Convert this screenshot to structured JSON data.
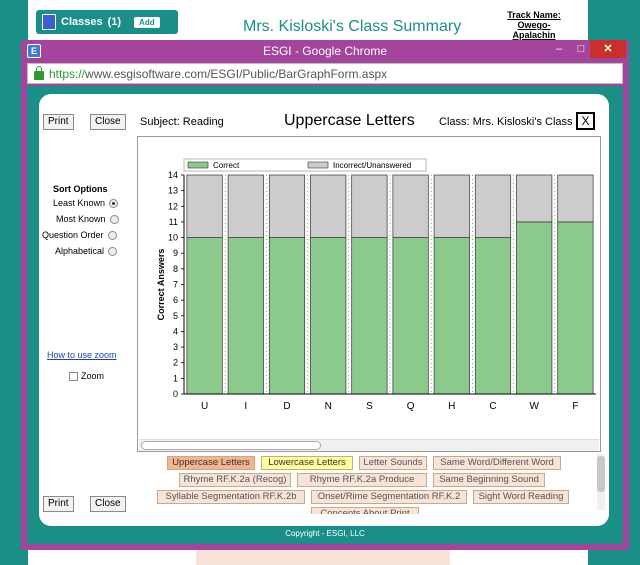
{
  "background": {
    "classes_label": "Classes",
    "classes_count": "(1)",
    "add_label": "Add",
    "page_title": "Mrs. Kisloski's Class Summary",
    "track_line1": "Track Name: Owego-",
    "track_line2": "Apalachin"
  },
  "window": {
    "title": "ESGI - Google Chrome",
    "app_icon": "ESGI",
    "minimize": "–",
    "maximize": "□",
    "close": "✕",
    "url_https": "https://",
    "url_rest": "www.esgisoftware.com/ESGI/Public/BarGraphForm.aspx"
  },
  "dialog": {
    "print_label": "Print",
    "close_label": "Close",
    "subject": "Subject: Reading",
    "title": "Uppercase Letters",
    "class_label": "Class: Mrs. Kisloski's Class",
    "x_label": "X",
    "sort_heading": "Sort Options",
    "sort_options": [
      {
        "label": "Least Known",
        "selected": true
      },
      {
        "label": "Most Known",
        "selected": false
      },
      {
        "label": "Question Order",
        "selected": false
      },
      {
        "label": "Alphabetical",
        "selected": false
      }
    ],
    "zoom_link": "How to use zoom",
    "zoom_label": "Zoom",
    "copyright": "Copyright - ESGI, LLC"
  },
  "chart_data": {
    "type": "bar",
    "stacked": true,
    "categories": [
      "U",
      "I",
      "D",
      "N",
      "S",
      "Q",
      "H",
      "C",
      "W",
      "F"
    ],
    "series": [
      {
        "name": "Correct",
        "color": "#8cc98c",
        "values": [
          10,
          10,
          10,
          10,
          10,
          10,
          10,
          10,
          11,
          11
        ]
      },
      {
        "name": "Incorrect/Unanswered",
        "color": "#cccccc",
        "values": [
          4,
          4,
          4,
          4,
          4,
          4,
          4,
          4,
          3,
          3
        ]
      }
    ],
    "ylabel": "Correct Answers",
    "ylim": [
      0,
      14
    ],
    "yticks": [
      0,
      1,
      2,
      3,
      4,
      5,
      6,
      7,
      8,
      9,
      10,
      11,
      12,
      13,
      14
    ],
    "legend_position": "top-left",
    "grid": "dotted vertical"
  },
  "test_tabs": [
    {
      "label": "Uppercase Letters",
      "state": "active"
    },
    {
      "label": "Lowercase Letters",
      "state": "highlight"
    },
    {
      "label": "Letter Sounds",
      "state": "normal"
    },
    {
      "label": "Same Word/Different Word",
      "state": "normal"
    },
    {
      "label": "Rhyme  RF.K.2a (Recog)",
      "state": "normal"
    },
    {
      "label": "Rhyme  RF.K.2a Produce",
      "state": "normal"
    },
    {
      "label": "Same Beginning Sound",
      "state": "normal"
    },
    {
      "label": "Syllable Segmentation RF.K.2b",
      "state": "normal"
    },
    {
      "label": "Onset/Rime Segmentation RF.K.2",
      "state": "normal"
    },
    {
      "label": "Sight Word Reading",
      "state": "normal"
    },
    {
      "label": "Concepts About Print",
      "state": "normal"
    }
  ]
}
